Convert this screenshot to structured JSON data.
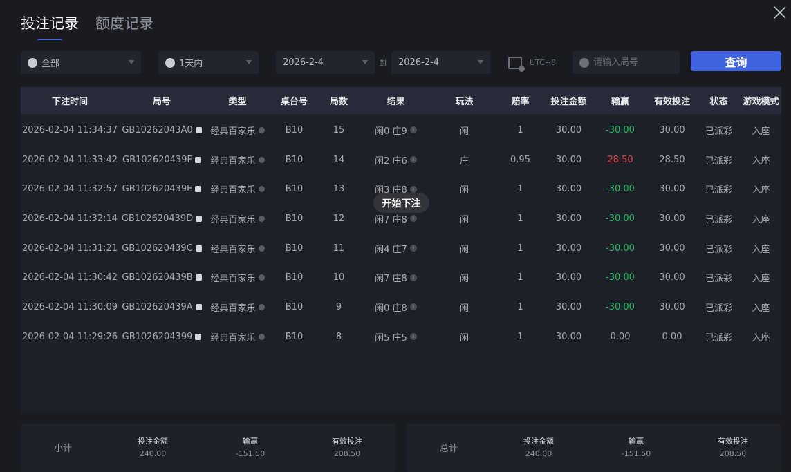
{
  "tabs": [
    {
      "label": "投注记录",
      "active": true
    },
    {
      "label": "额度记录",
      "active": false
    }
  ],
  "filters": {
    "game": "全部",
    "range": "1天内",
    "date_from": "2026-2-4",
    "to_label": "到",
    "date_to": "2026-2-4",
    "timezone": "UTC+8",
    "round_placeholder": "请输入局号",
    "query_label": "查询"
  },
  "colors": {
    "accent": "#3e63dd",
    "loss": "#1fbf5a",
    "win": "#e84343"
  },
  "table": {
    "headers": [
      "下注时间",
      "局号",
      "类型",
      "桌台号",
      "局数",
      "结果",
      "玩法",
      "赔率",
      "投注金额",
      "输赢",
      "有效投注",
      "状态",
      "游戏模式"
    ],
    "rows": [
      [
        "2026-02-04 11:34:37",
        "GB10262043A0",
        "经典百家乐",
        "B10",
        "15",
        "闲0 庄9",
        "闲",
        "1",
        "30.00",
        "-30.00",
        "30.00",
        "已派彩",
        "入座"
      ],
      [
        "2026-02-04 11:33:42",
        "GB102620439F",
        "经典百家乐",
        "B10",
        "14",
        "闲2 庄6",
        "庄",
        "0.95",
        "30.00",
        "28.50",
        "28.50",
        "已派彩",
        "入座"
      ],
      [
        "2026-02-04 11:32:57",
        "GB102620439E",
        "经典百家乐",
        "B10",
        "13",
        "闲3 庄8",
        "闲",
        "1",
        "30.00",
        "-30.00",
        "30.00",
        "已派彩",
        "入座"
      ],
      [
        "2026-02-04 11:32:14",
        "GB102620439D",
        "经典百家乐",
        "B10",
        "12",
        "闲7 庄8",
        "闲",
        "1",
        "30.00",
        "-30.00",
        "30.00",
        "已派彩",
        "入座"
      ],
      [
        "2026-02-04 11:31:21",
        "GB102620439C",
        "经典百家乐",
        "B10",
        "11",
        "闲4 庄7",
        "闲",
        "1",
        "30.00",
        "-30.00",
        "30.00",
        "已派彩",
        "入座"
      ],
      [
        "2026-02-04 11:30:42",
        "GB102620439B",
        "经典百家乐",
        "B10",
        "10",
        "闲7 庄8",
        "闲",
        "1",
        "30.00",
        "-30.00",
        "30.00",
        "已派彩",
        "入座"
      ],
      [
        "2026-02-04 11:30:09",
        "GB102620439A",
        "经典百家乐",
        "B10",
        "9",
        "闲0 庄8",
        "闲",
        "1",
        "30.00",
        "-30.00",
        "30.00",
        "已派彩",
        "入座"
      ],
      [
        "2026-02-04 11:29:26",
        "GB1026204399",
        "经典百家乐",
        "B10",
        "8",
        "闲5 庄5",
        "闲",
        "1",
        "30.00",
        "0.00",
        "0.00",
        "已派彩",
        "入座"
      ]
    ]
  },
  "tooltip": "开始下注",
  "subtotal": {
    "label": "小计",
    "bet_label": "投注金额",
    "bet": "240.00",
    "win_label": "输赢",
    "win": "-151.50",
    "valid_label": "有效投注",
    "valid": "208.50"
  },
  "total": {
    "label": "总计",
    "bet_label": "投注金额",
    "bet": "240.00",
    "win_label": "输赢",
    "win": "-151.50",
    "valid_label": "有效投注",
    "valid": "208.50"
  }
}
